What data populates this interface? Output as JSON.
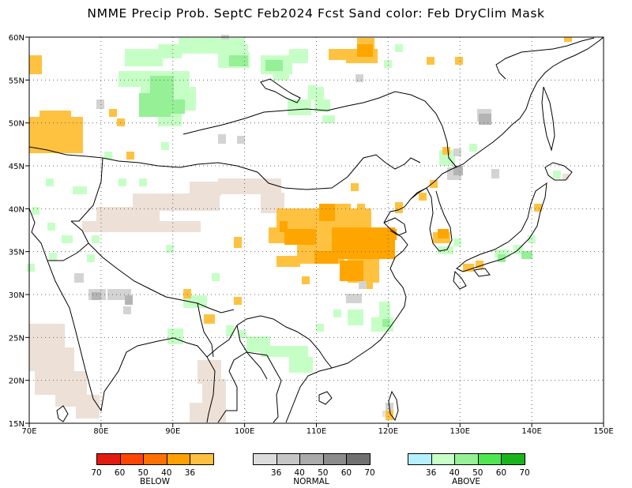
{
  "title": "NMME Precip Prob. SeptC  Feb2024 Fcst  Sand color: Feb DryClim Mask",
  "map": {
    "lon_range": [
      70,
      150
    ],
    "lat_range": [
      15,
      60
    ],
    "lon_ticks": [
      "70E",
      "80E",
      "90E",
      "100E",
      "110E",
      "120E",
      "130E",
      "140E",
      "150E"
    ],
    "lat_ticks": [
      "15N",
      "20N",
      "25N",
      "30N",
      "35N",
      "40N",
      "45N",
      "50N",
      "55N",
      "60N"
    ],
    "grid": "dotted"
  },
  "colors": {
    "sand": "#ede0d6",
    "below_36": "#ffc240",
    "below_40": "#ffa500",
    "above_36": "#c6ffc6",
    "above_40": "#96f096",
    "normal_36": "#d3d3d3",
    "normal_40": "#b4b4b4",
    "coast": "#000000"
  },
  "legend": {
    "below": {
      "label": "BELOW",
      "colors": [
        "#e31a0f",
        "#ff4500",
        "#ff7000",
        "#ffa000",
        "#ffc040"
      ],
      "ticks": [
        "70",
        "60",
        "50",
        "40",
        "36"
      ]
    },
    "normal": {
      "label": "NORMAL",
      "colors": [
        "#dcdcdc",
        "#c6c6c6",
        "#aaaaaa",
        "#8c8c8c",
        "#707070"
      ],
      "ticks": [
        "36",
        "40",
        "50",
        "60",
        "70"
      ]
    },
    "above": {
      "label": "ABOVE",
      "colors": [
        "#b4f0ff",
        "#c8ffc8",
        "#96f096",
        "#50e650",
        "#19b419"
      ],
      "ticks": [
        "36",
        "40",
        "50",
        "60",
        "70"
      ]
    }
  }
}
